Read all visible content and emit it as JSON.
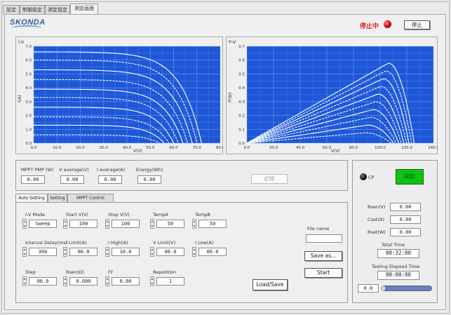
{
  "tabs": [
    "設定",
    "制御設定",
    "測定設定",
    "測定画面"
  ],
  "header": {
    "logo": "SKONDA",
    "status_text": "停止中",
    "stop_button": "停止",
    "status_color": "#e02020"
  },
  "iv_chart": {
    "title": "I-V",
    "ylabel": "I(A)",
    "xlabel": "V(V)",
    "yticks": [
      "7.0",
      "6.0",
      "5.0",
      "4.0",
      "3.0",
      "2.0",
      "1.0",
      "0.0"
    ],
    "xticks": [
      "0.0",
      "10.0",
      "20.0",
      "30.0",
      "40.0",
      "50.0",
      "60.0",
      "70.0",
      "80.0"
    ]
  },
  "pv_chart": {
    "title": "P-V",
    "ylabel": "P(W)",
    "xlabel": "V(V)",
    "yticks": [
      "0.7",
      "0.6",
      "0.5",
      "0.4",
      "0.3",
      "0.2",
      "0.1",
      "0.0"
    ],
    "xticks": [
      "0.0",
      "20.0",
      "40.0",
      "60.0",
      "80.0",
      "100.0",
      "120.0",
      "140.0"
    ]
  },
  "chart_data": [
    {
      "type": "line",
      "title": "I-V",
      "xlabel": "V(V)",
      "ylabel": "I(A)",
      "xlim": [
        0,
        80
      ],
      "ylim": [
        0,
        7
      ],
      "series": [
        {
          "isc": 6.6,
          "voc": 72
        },
        {
          "isc": 6.0,
          "voc": 70
        },
        {
          "isc": 5.3,
          "voc": 68
        },
        {
          "isc": 4.6,
          "voc": 66
        },
        {
          "isc": 3.9,
          "voc": 64
        },
        {
          "isc": 3.3,
          "voc": 62
        },
        {
          "isc": 2.6,
          "voc": 60
        },
        {
          "isc": 1.9,
          "voc": 58
        },
        {
          "isc": 1.3,
          "voc": 56
        },
        {
          "isc": 0.6,
          "voc": 54
        }
      ]
    },
    {
      "type": "line",
      "title": "P-V",
      "xlabel": "V(V)",
      "ylabel": "P(W)",
      "xlim": [
        0,
        145
      ],
      "ylim": [
        0,
        0.75
      ],
      "series": [
        {
          "pmax": 0.62,
          "vmp": 110,
          "voc": 130
        },
        {
          "pmax": 0.56,
          "vmp": 108,
          "voc": 128
        },
        {
          "pmax": 0.5,
          "vmp": 106,
          "voc": 126
        },
        {
          "pmax": 0.44,
          "vmp": 104,
          "voc": 124
        },
        {
          "pmax": 0.38,
          "vmp": 102,
          "voc": 122
        },
        {
          "pmax": 0.32,
          "vmp": 100,
          "voc": 120
        },
        {
          "pmax": 0.26,
          "vmp": 98,
          "voc": 118
        },
        {
          "pmax": 0.2,
          "vmp": 96,
          "voc": 116
        },
        {
          "pmax": 0.14,
          "vmp": 94,
          "voc": 114
        },
        {
          "pmax": 0.08,
          "vmp": 92,
          "voc": 112
        }
      ]
    }
  ],
  "meas_row": {
    "labels": [
      "MPPT PMP (W)",
      "V average(V)",
      "I average(A)",
      "Energy(Wh)"
    ],
    "values": [
      "0.00",
      "0.00",
      "0.00",
      "0.00"
    ],
    "disabled_button": "記録"
  },
  "lower_tabs": [
    "Auto Setting",
    "Setting",
    "MPPT Control"
  ],
  "settings": {
    "row1_labels": [
      "I-V Mode",
      "Start V(V)",
      "Stop V(V)",
      "TempA",
      "TempB"
    ],
    "row1_values": [
      "Sweep",
      "100",
      "100",
      "50",
      "50"
    ],
    "row2_labels": [
      "Interval Delay(ms)",
      "I Limit(A)",
      "I High(A)",
      "V Limit(V)",
      "I Low(A)"
    ],
    "row2_values": [
      "300",
      "00.0",
      "10.0",
      "00.0",
      "00.0"
    ],
    "row3_labels": [
      "Step",
      "Rsen(Ω)",
      "FF",
      "Repetition"
    ],
    "row3_values": [
      "00.0",
      "0.000",
      "0.00",
      "1"
    ],
    "file_name_label": "File name",
    "save_button": "Save as...",
    "run_button": "Start",
    "apply_button": "Load/Save"
  },
  "right_panel": {
    "indicator_label": "CP",
    "green_button": "開始",
    "fields": [
      {
        "label": "Rsen(V)",
        "value": "0.00"
      },
      {
        "label": "Cset(A)",
        "value": "0.00"
      },
      {
        "label": "Rset(W)",
        "value": "0.00"
      }
    ],
    "total_time_label": "Total Time",
    "total_time": "00:32:00",
    "elapsed_label": "Testing Elapsed Time",
    "elapsed_time": "00:00:00",
    "progress_value": "0.0",
    "progress_fraction": 0.05
  }
}
